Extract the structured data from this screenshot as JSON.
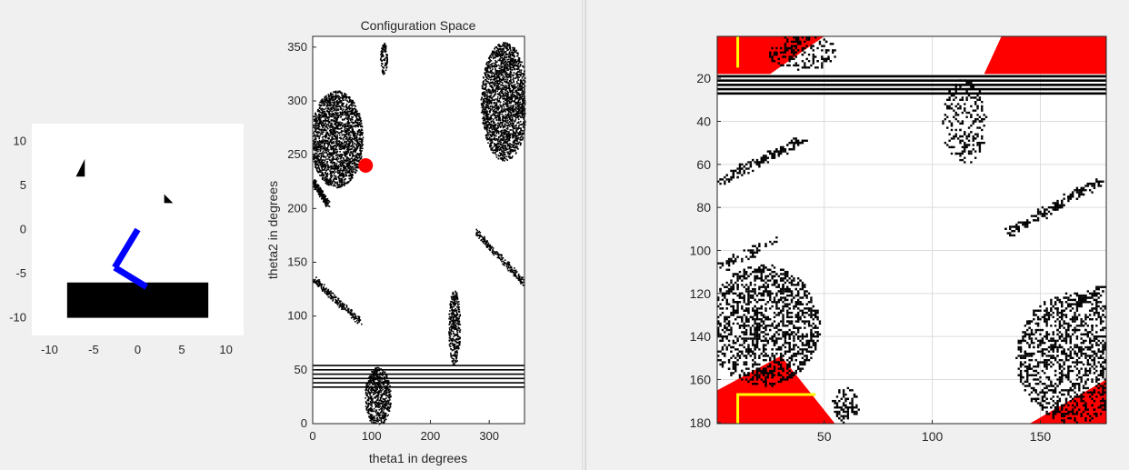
{
  "workspace": {
    "colors": {
      "background": "#f0f0f0",
      "axes_bg": "#ffffff",
      "link": "#0000ff",
      "obstacle": "#000000",
      "marker": "#ff0000",
      "path": "#ffff00",
      "goal": "#ff0000"
    }
  },
  "chart_data": [
    {
      "id": "workspace",
      "type": "scatter",
      "title": "",
      "xlabel": "",
      "ylabel": "",
      "xlim": [
        -12,
        12
      ],
      "ylim": [
        -12,
        12
      ],
      "xticks": [
        "-10",
        "-5",
        "0",
        "5",
        "10"
      ],
      "yticks": [
        "-10",
        "-5",
        "0",
        "5",
        "10"
      ],
      "arm_joints": [
        [
          0,
          0
        ],
        [
          -2.6,
          -4.3
        ],
        [
          1.0,
          -6.5
        ]
      ],
      "obstacles": [
        {
          "shape": "rect",
          "x": [
            -8,
            8
          ],
          "y": [
            -10,
            -6
          ]
        },
        {
          "shape": "triangle",
          "points": [
            [
              -7,
              6
            ],
            [
              -6,
              6
            ],
            [
              -6,
              8
            ]
          ]
        },
        {
          "shape": "triangle",
          "points": [
            [
              3,
              4
            ],
            [
              4,
              3
            ],
            [
              3,
              3
            ]
          ]
        }
      ],
      "grid": false
    },
    {
      "id": "configuration-space",
      "type": "scatter",
      "title": "Configuration Space",
      "xlabel": "theta1 in degrees",
      "ylabel": "theta2 in degrees",
      "xlim": [
        0,
        360
      ],
      "ylim": [
        0,
        360
      ],
      "xticks": [
        "0",
        "100",
        "200",
        "300"
      ],
      "yticks": [
        "0",
        "50",
        "100",
        "150",
        "200",
        "250",
        "300",
        "350"
      ],
      "current_config": {
        "theta1": 90,
        "theta2": 240
      },
      "obstacle_regions": [
        {
          "kind": "ellipse",
          "cx": 40,
          "cy": 265,
          "rx": 45,
          "ry": 45
        },
        {
          "kind": "ellipse",
          "cx": 325,
          "cy": 300,
          "rx": 40,
          "ry": 55
        },
        {
          "kind": "band",
          "theta2": [
            34,
            55
          ]
        },
        {
          "kind": "ellipse",
          "cx": 110,
          "cy": 25,
          "rx": 22,
          "ry": 28
        },
        {
          "kind": "ellipse",
          "cx": 240,
          "cy": 90,
          "rx": 10,
          "ry": 35
        },
        {
          "kind": "ellipse",
          "cx": 120,
          "cy": 340,
          "rx": 6,
          "ry": 15
        },
        {
          "kind": "stripe",
          "from": [
            0,
            135
          ],
          "to": [
            80,
            95
          ]
        },
        {
          "kind": "stripe",
          "from": [
            275,
            180
          ],
          "to": [
            360,
            130
          ]
        },
        {
          "kind": "stripe",
          "from": [
            0,
            225
          ],
          "to": [
            25,
            205
          ]
        }
      ],
      "grid": false
    },
    {
      "id": "occupancy-grid",
      "type": "heatmap",
      "title": "",
      "xlabel": "",
      "ylabel": "",
      "xlim": [
        0.5,
        180.5
      ],
      "ylim": [
        0.5,
        180.5
      ],
      "y_reversed": true,
      "xticks": [
        "50",
        "100",
        "150"
      ],
      "yticks": [
        "20",
        "40",
        "60",
        "80",
        "100",
        "120",
        "140",
        "160",
        "180"
      ],
      "grid": true,
      "free_cell_color": "#ffffff",
      "obstacle_cell_color": "#000000",
      "goal_region_color": "#ff0000",
      "path_color": "#ffff00"
    }
  ]
}
